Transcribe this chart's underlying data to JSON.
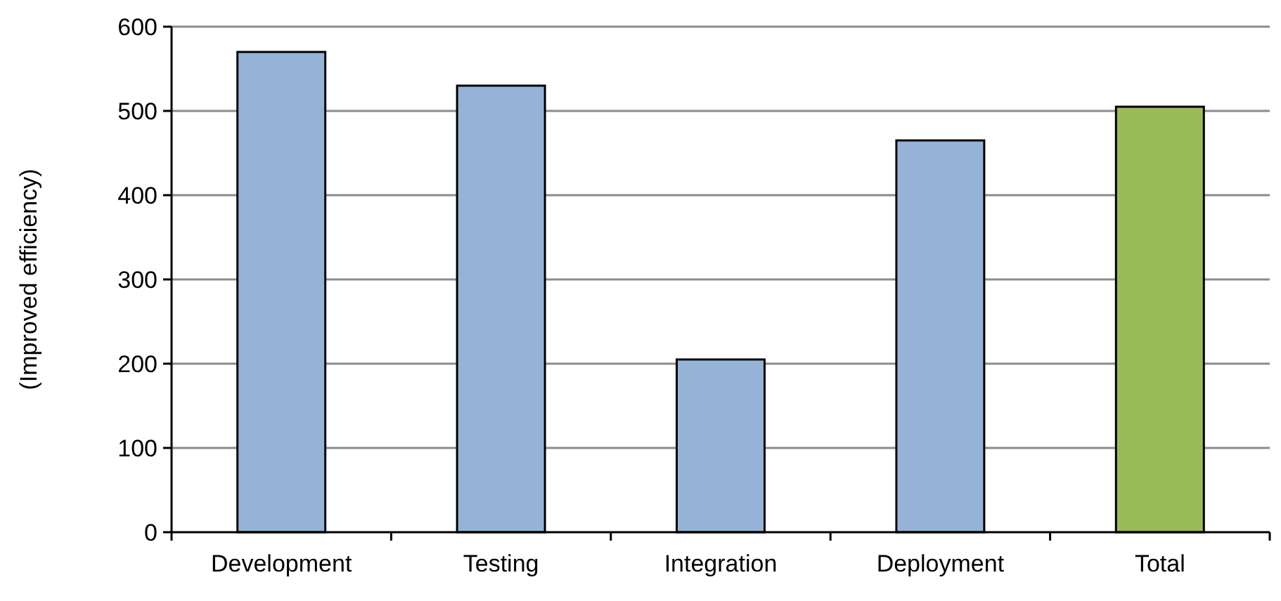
{
  "chart_data": {
    "type": "bar",
    "ylabel": "(Improved efficiency)",
    "categories": [
      "Development",
      "Testing",
      "Integration",
      "Deployment",
      "Total"
    ],
    "values": [
      570,
      530,
      205,
      465,
      505
    ],
    "colors": [
      "#95b3d7",
      "#95b3d7",
      "#95b3d7",
      "#95b3d7",
      "#9bbb59"
    ],
    "ylim": [
      0,
      600
    ],
    "yticks": [
      0,
      100,
      200,
      300,
      400,
      500,
      600
    ],
    "grid": "y"
  }
}
